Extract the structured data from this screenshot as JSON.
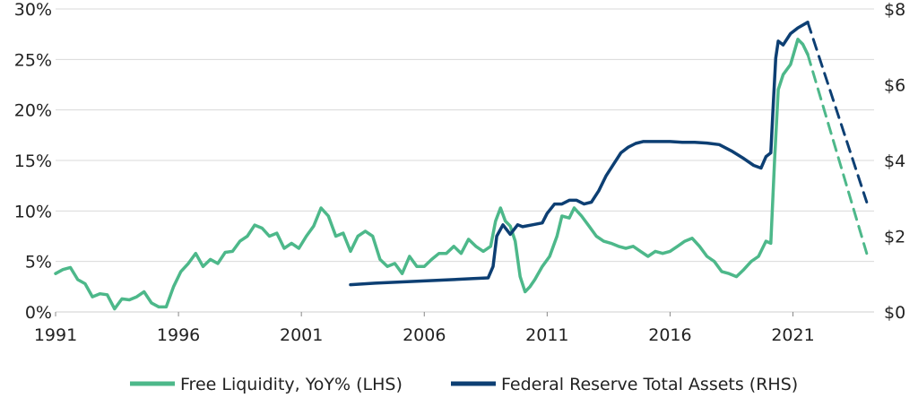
{
  "chart_data": {
    "type": "line",
    "title": "",
    "xlabel": "",
    "ylabel_left": "",
    "ylabel_right": "",
    "x_ticks": [
      "1991",
      "1996",
      "2001",
      "2006",
      "2011",
      "2016",
      "2021"
    ],
    "x_tick_values": [
      1991,
      1996,
      2001,
      2006,
      2011,
      2016,
      2021
    ],
    "xlim": [
      1991,
      2024.3
    ],
    "y_left_ticks": [
      "0%",
      "5%",
      "10%",
      "15%",
      "20%",
      "25%",
      "30%"
    ],
    "y_left_tick_values": [
      0,
      5,
      10,
      15,
      20,
      25,
      30
    ],
    "ylim_left": [
      0,
      30
    ],
    "y_right_ticks": [
      "$0",
      "$2",
      "$4",
      "$6",
      "$8"
    ],
    "y_right_tick_values": [
      0,
      2,
      4,
      6,
      8
    ],
    "ylim_right": [
      0,
      8
    ],
    "grid": "horizontal",
    "legend_position": "bottom",
    "series": [
      {
        "name": "Free Liquidity, YoY% (LHS)",
        "axis": "left",
        "color": "#4db88a",
        "style": "solid",
        "x": [
          1991.0,
          1991.3,
          1991.6,
          1991.9,
          1992.2,
          1992.5,
          1992.8,
          1993.1,
          1993.4,
          1993.7,
          1994.0,
          1994.3,
          1994.6,
          1994.9,
          1995.2,
          1995.5,
          1995.8,
          1996.1,
          1996.4,
          1996.7,
          1997.0,
          1997.3,
          1997.6,
          1997.9,
          1998.2,
          1998.5,
          1998.8,
          1999.1,
          1999.4,
          1999.7,
          2000.0,
          2000.3,
          2000.6,
          2000.9,
          2001.2,
          2001.5,
          2001.8,
          2002.1,
          2002.4,
          2002.7,
          2003.0,
          2003.3,
          2003.6,
          2003.9,
          2004.2,
          2004.5,
          2004.8,
          2005.1,
          2005.4,
          2005.7,
          2006.0,
          2006.3,
          2006.6,
          2006.9,
          2007.2,
          2007.5,
          2007.8,
          2008.1,
          2008.4,
          2008.7,
          2008.9,
          2009.1,
          2009.3,
          2009.5,
          2009.7,
          2009.9,
          2010.1,
          2010.3,
          2010.5,
          2010.8,
          2011.1,
          2011.4,
          2011.6,
          2011.9,
          2012.1,
          2012.4,
          2012.7,
          2013.0,
          2013.3,
          2013.6,
          2013.9,
          2014.2,
          2014.5,
          2014.8,
          2015.1,
          2015.4,
          2015.7,
          2016.0,
          2016.3,
          2016.6,
          2016.9,
          2017.2,
          2017.5,
          2017.8,
          2018.1,
          2018.4,
          2018.7,
          2019.0,
          2019.3,
          2019.6,
          2019.9,
          2020.1,
          2020.25,
          2020.4,
          2020.6,
          2020.9,
          2021.2,
          2021.4,
          2021.6
        ],
        "values": [
          3.8,
          4.2,
          4.4,
          3.2,
          2.8,
          1.5,
          1.8,
          1.7,
          0.3,
          1.3,
          1.2,
          1.5,
          2.0,
          0.9,
          0.5,
          0.5,
          2.5,
          4.0,
          4.8,
          5.8,
          4.5,
          5.2,
          4.8,
          5.9,
          6.0,
          7.0,
          7.5,
          8.6,
          8.3,
          7.5,
          7.8,
          6.3,
          6.8,
          6.3,
          7.5,
          8.5,
          10.3,
          9.5,
          7.5,
          7.8,
          6.0,
          7.5,
          8.0,
          7.5,
          5.2,
          4.5,
          4.8,
          3.8,
          5.5,
          4.5,
          4.5,
          5.2,
          5.8,
          5.8,
          6.5,
          5.8,
          7.2,
          6.5,
          6.0,
          6.5,
          9.0,
          10.3,
          9.0,
          8.5,
          7.0,
          3.5,
          2.0,
          2.5,
          3.2,
          4.5,
          5.5,
          7.5,
          9.5,
          9.3,
          10.3,
          9.5,
          8.5,
          7.5,
          7.0,
          6.8,
          6.5,
          6.3,
          6.5,
          6.0,
          5.5,
          6.0,
          5.8,
          6.0,
          6.5,
          7.0,
          7.3,
          6.5,
          5.5,
          5.0,
          4.0,
          3.8,
          3.5,
          4.2,
          5.0,
          5.5,
          7.0,
          6.8,
          15.0,
          22.0,
          23.5,
          24.5,
          27.0,
          26.5,
          25.5
        ]
      },
      {
        "name": "Federal Reserve Total Assets (RHS)",
        "axis": "right",
        "color": "#0d3f73",
        "style": "solid",
        "x": [
          2003.0,
          2004.0,
          2005.0,
          2006.0,
          2007.0,
          2008.0,
          2008.6,
          2008.8,
          2008.95,
          2009.2,
          2009.5,
          2009.8,
          2010.0,
          2010.4,
          2010.8,
          2011.0,
          2011.3,
          2011.6,
          2011.9,
          2012.2,
          2012.5,
          2012.8,
          2013.1,
          2013.4,
          2013.7,
          2014.0,
          2014.3,
          2014.6,
          2014.9,
          2015.2,
          2015.6,
          2016.0,
          2016.5,
          2017.0,
          2017.5,
          2018.0,
          2018.5,
          2019.0,
          2019.4,
          2019.7,
          2019.9,
          2020.1,
          2020.2,
          2020.3,
          2020.4,
          2020.6,
          2020.9,
          2021.2,
          2021.6
        ],
        "values": [
          0.72,
          0.76,
          0.79,
          0.82,
          0.85,
          0.88,
          0.9,
          1.2,
          2.0,
          2.3,
          2.05,
          2.3,
          2.25,
          2.3,
          2.35,
          2.6,
          2.85,
          2.85,
          2.95,
          2.95,
          2.85,
          2.9,
          3.2,
          3.6,
          3.9,
          4.2,
          4.35,
          4.45,
          4.5,
          4.5,
          4.5,
          4.5,
          4.48,
          4.48,
          4.46,
          4.42,
          4.25,
          4.05,
          3.87,
          3.8,
          4.1,
          4.2,
          5.5,
          6.7,
          7.15,
          7.05,
          7.35,
          7.5,
          7.65
        ]
      },
      {
        "name": "",
        "axis": "left",
        "color": "#4db88a",
        "style": "dashed",
        "x": [
          2021.6,
          2024.0
        ],
        "values": [
          25.5,
          5.8
        ]
      },
      {
        "name": "",
        "axis": "right",
        "color": "#0d3f73",
        "style": "dashed",
        "x": [
          2021.6,
          2024.0
        ],
        "values": [
          7.65,
          2.9
        ]
      }
    ]
  }
}
